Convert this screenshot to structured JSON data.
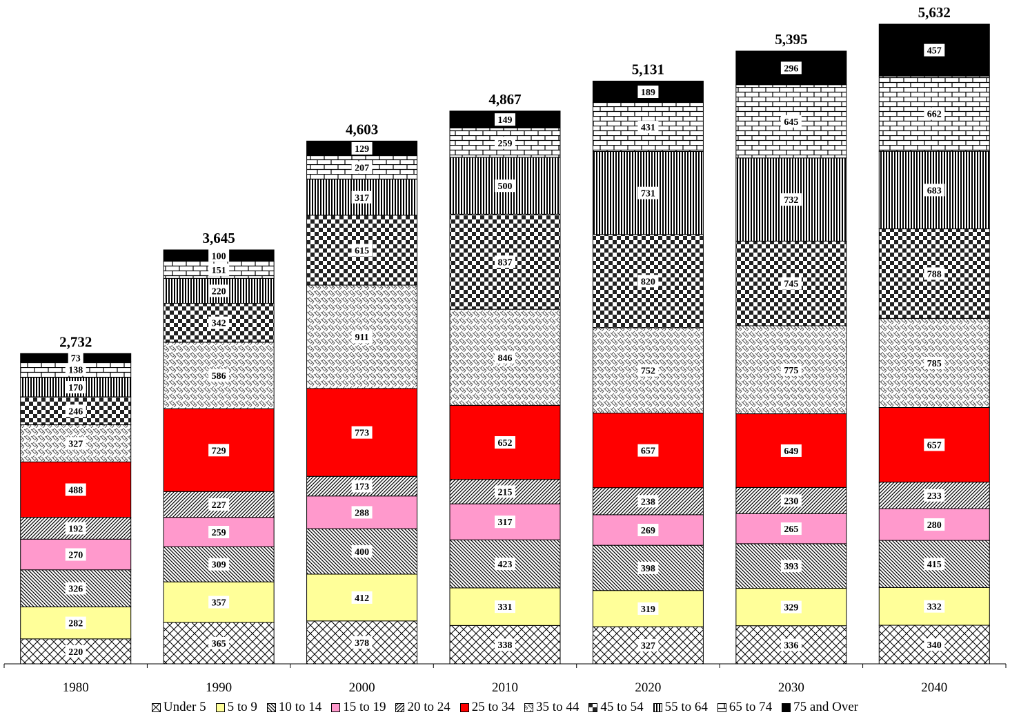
{
  "chart_data": {
    "type": "bar",
    "stacked": true,
    "title": "",
    "xlabel": "",
    "ylabel": "",
    "categories": [
      "1980",
      "1990",
      "2000",
      "2010",
      "2020",
      "2030",
      "2040"
    ],
    "totals": [
      "2,732",
      "3,645",
      "4,603",
      "4,867",
      "5,131",
      "5,395",
      "5,632"
    ],
    "total_values": [
      2732,
      3645,
      4603,
      4867,
      5131,
      5395,
      5632
    ],
    "series": [
      {
        "name": "Under 5",
        "values": [
          220,
          365,
          378,
          338,
          327,
          336,
          340
        ],
        "color": "#ffffff",
        "pattern": "cross-hatch"
      },
      {
        "name": "5 to 9",
        "values": [
          282,
          357,
          412,
          331,
          319,
          329,
          332
        ],
        "color": "#ffff99",
        "pattern": "solid"
      },
      {
        "name": "10 to 14",
        "values": [
          326,
          309,
          400,
          423,
          398,
          393,
          415
        ],
        "color": "#ffffff",
        "pattern": "diag-down"
      },
      {
        "name": "15 to 19",
        "values": [
          270,
          259,
          288,
          317,
          269,
          265,
          280
        ],
        "color": "#ff99cc",
        "pattern": "solid"
      },
      {
        "name": "20 to 24",
        "values": [
          192,
          227,
          173,
          215,
          238,
          230,
          233
        ],
        "color": "#ffffff",
        "pattern": "diag-up"
      },
      {
        "name": "25 to 34",
        "values": [
          488,
          729,
          773,
          652,
          657,
          649,
          657
        ],
        "color": "#ff0000",
        "pattern": "solid"
      },
      {
        "name": "35 to 44",
        "values": [
          327,
          586,
          911,
          846,
          752,
          775,
          785
        ],
        "color": "#ffffff",
        "pattern": "weave"
      },
      {
        "name": "45 to 54",
        "values": [
          246,
          342,
          615,
          837,
          820,
          745,
          788
        ],
        "color": "#ffffff",
        "pattern": "checker"
      },
      {
        "name": "55 to 64",
        "values": [
          170,
          220,
          317,
          500,
          731,
          732,
          683
        ],
        "color": "#ffffff",
        "pattern": "vertical"
      },
      {
        "name": "65 to 74",
        "values": [
          138,
          151,
          207,
          259,
          431,
          645,
          662
        ],
        "color": "#ffffff",
        "pattern": "brick"
      },
      {
        "name": "75 and Over",
        "values": [
          73,
          100,
          129,
          149,
          189,
          296,
          457
        ],
        "color": "#000000",
        "pattern": "solid"
      }
    ],
    "ylim": [
      0,
      5632
    ],
    "grid": false,
    "legend_position": "bottom"
  }
}
